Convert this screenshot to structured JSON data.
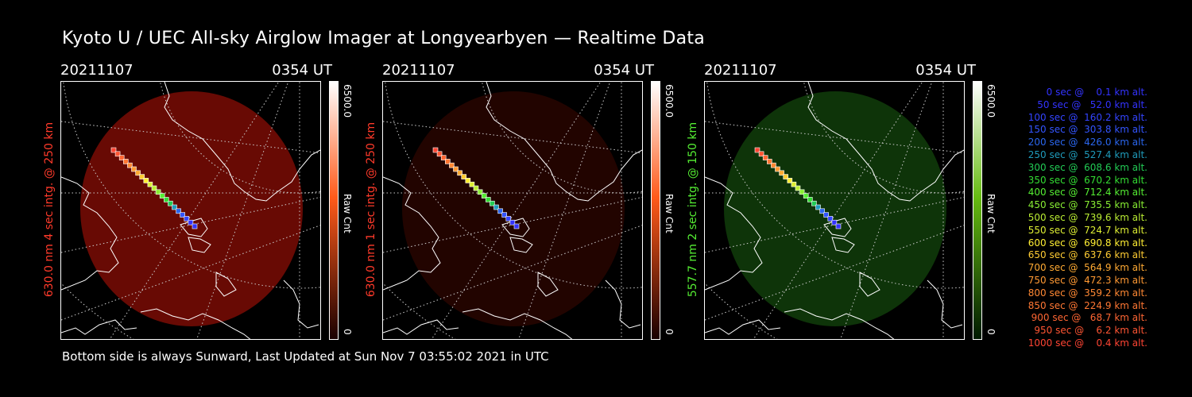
{
  "title": "Kyoto U / UEC All-sky Airglow Imager at Longyearbyen — Realtime Data",
  "footer": "Bottom side is always Sunward, Last Updated at Sun Nov  7 03:55:02 2021 in UTC",
  "panels": [
    {
      "date": "20211107",
      "time": "0354 UT",
      "label": "630.0 nm 4 sec intg. @ 250 km",
      "label_color": "#ff3a2a",
      "colorbar_max": "6500.0",
      "colorbar_min": "0",
      "colorbar_unit": "Raw Cnt",
      "image_color": "#6e0b04",
      "image_intensity": "bright",
      "colorbar_top": "#ffffff",
      "colorbar_mid": "#ff5a1a",
      "colorbar_bottom": "#1a0000"
    },
    {
      "date": "20211107",
      "time": "0354 UT",
      "label": "630.0 nm 1 sec intg. @ 250 km",
      "label_color": "#ff3a2a",
      "colorbar_max": "6500.0",
      "colorbar_min": "0",
      "colorbar_unit": "Raw Cnt",
      "image_color": "#2a0500",
      "image_intensity": "dim",
      "colorbar_top": "#ffffff",
      "colorbar_mid": "#ff5a1a",
      "colorbar_bottom": "#1a0000"
    },
    {
      "date": "20211107",
      "time": "0354 UT",
      "label": "557.7 nm 2 sec intg. @ 150 km",
      "label_color": "#55ee33",
      "colorbar_max": "6500.0",
      "colorbar_min": "0",
      "colorbar_unit": "Raw Cnt",
      "image_color": "#103a0a",
      "image_intensity": "medium",
      "colorbar_top": "#ffffff",
      "colorbar_mid": "#66bb11",
      "colorbar_bottom": "#001a00"
    }
  ],
  "legend": [
    {
      "text": "   0 sec @    0.1 km alt.",
      "color": "#3333ff"
    },
    {
      "text": "  50 sec @   52.0 km alt.",
      "color": "#3333ff"
    },
    {
      "text": " 100 sec @  160.2 km alt.",
      "color": "#3344ff"
    },
    {
      "text": " 150 sec @  303.8 km alt.",
      "color": "#3355ff"
    },
    {
      "text": " 200 sec @  426.0 km alt.",
      "color": "#2a66ee"
    },
    {
      "text": " 250 sec @  527.4 km alt.",
      "color": "#1f9bbb"
    },
    {
      "text": " 300 sec @  608.6 km alt.",
      "color": "#22cc55"
    },
    {
      "text": " 350 sec @  670.2 km alt.",
      "color": "#33dd33"
    },
    {
      "text": " 400 sec @  712.4 km alt.",
      "color": "#55ee33"
    },
    {
      "text": " 450 sec @  735.5 km alt.",
      "color": "#88ee33"
    },
    {
      "text": " 500 sec @  739.6 km alt.",
      "color": "#bbee33"
    },
    {
      "text": " 550 sec @  724.7 km alt.",
      "color": "#ddee33"
    },
    {
      "text": " 600 sec @  690.8 km alt.",
      "color": "#ffee33"
    },
    {
      "text": " 650 sec @  637.6 km alt.",
      "color": "#ffcc33"
    },
    {
      "text": " 700 sec @  564.9 km alt.",
      "color": "#ffaa33"
    },
    {
      "text": " 750 sec @  472.3 km alt.",
      "color": "#ff9933"
    },
    {
      "text": " 800 sec @  359.2 km alt.",
      "color": "#ff8833"
    },
    {
      "text": " 850 sec @  224.9 km alt.",
      "color": "#ff7733"
    },
    {
      "text": " 900 sec @   68.7 km alt.",
      "color": "#ff6633"
    },
    {
      "text": " 950 sec @    6.2 km alt.",
      "color": "#ff5533"
    },
    {
      "text": "1000 sec @    0.4 km alt.",
      "color": "#ff4433"
    }
  ]
}
